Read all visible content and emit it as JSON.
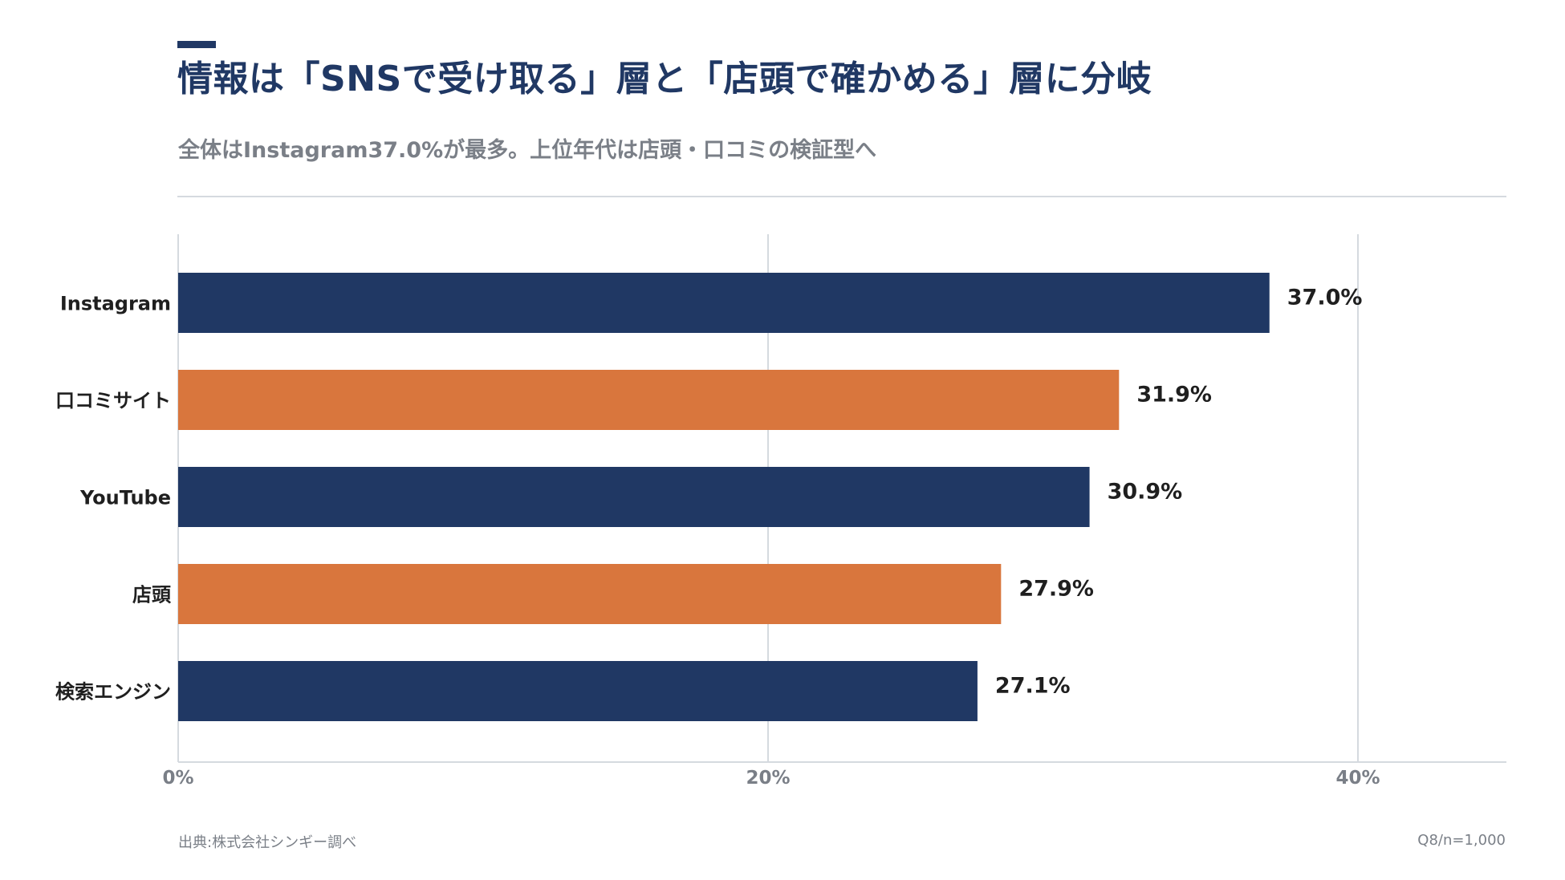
{
  "header": {
    "title": "情報は「SNSで受け取る」層と「店頭で確かめる」層に分岐",
    "subtitle": "全体はInstagram37.0%が最多。上位年代は店頭・口コミの検証型へ"
  },
  "colors": {
    "navy": "#203864",
    "orange": "#D9763D",
    "grid": "#d5dadf",
    "muted_text": "#7a7f87",
    "label_text": "#1f1f1f"
  },
  "chart_data": {
    "type": "bar",
    "orientation": "horizontal",
    "categories": [
      "Instagram",
      "口コミサイト",
      "YouTube",
      "店頭",
      "検索エンジン"
    ],
    "values": [
      37.0,
      31.9,
      30.9,
      27.9,
      27.1
    ],
    "value_labels": [
      "37.0%",
      "31.9%",
      "30.9%",
      "27.9%",
      "27.1%"
    ],
    "bar_colors": [
      "#203864",
      "#D9763D",
      "#203864",
      "#D9763D",
      "#203864"
    ],
    "xlim": [
      0,
      45
    ],
    "xticks": [
      0,
      20,
      40
    ],
    "xtick_labels": [
      "0%",
      "20%",
      "40%"
    ],
    "grid": true,
    "legend": "none"
  },
  "footer": {
    "source": "出典:株式会社シンギー調べ",
    "note": "Q8/n=1,000"
  }
}
